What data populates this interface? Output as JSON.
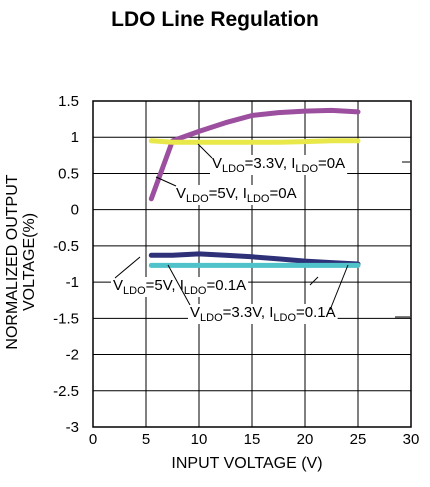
{
  "chart_data": {
    "type": "line",
    "title": "LDO Line Regulation",
    "xlabel": "INPUT VOLTAGE (V)",
    "ylabel_line1": "NORMALIZED OUTPUT",
    "ylabel_line2": "VOLTAGE(%)",
    "xlim": [
      0,
      30
    ],
    "ylim": [
      -3,
      1.5
    ],
    "xticks": [
      0,
      5,
      10,
      15,
      20,
      25,
      30
    ],
    "yticks": [
      1.5,
      1,
      0.5,
      0,
      -0.5,
      -1,
      -1.5,
      -2,
      -2.5,
      -3
    ],
    "grid": true,
    "series": [
      {
        "label_parts": [
          [
            "V",
            ""
          ],
          [
            "LDO",
            "sub"
          ],
          [
            "=5V, I",
            ""
          ],
          [
            "LDO",
            "sub"
          ],
          [
            "=0A",
            ""
          ]
        ],
        "color": "#9b4f9e",
        "x": [
          5.5,
          7.5,
          10,
          12.5,
          15,
          17.5,
          20,
          22.5,
          25
        ],
        "y": [
          0.15,
          0.95,
          1.08,
          1.2,
          1.3,
          1.34,
          1.36,
          1.37,
          1.35
        ]
      },
      {
        "label_parts": [
          [
            "V",
            ""
          ],
          [
            "LDO",
            "sub"
          ],
          [
            "=3.3V, I",
            ""
          ],
          [
            "LDO",
            "sub"
          ],
          [
            "=0A",
            ""
          ]
        ],
        "color": "#e8e84a",
        "x": [
          5.5,
          7.5,
          10,
          12.5,
          15,
          17.5,
          20,
          22.5,
          25
        ],
        "y": [
          0.95,
          0.93,
          0.93,
          0.93,
          0.93,
          0.93,
          0.94,
          0.95,
          0.95
        ]
      },
      {
        "label_parts": [
          [
            "V",
            ""
          ],
          [
            "LDO",
            "sub"
          ],
          [
            "=5V, I",
            ""
          ],
          [
            "LDO",
            "sub"
          ],
          [
            "=0.1A",
            ""
          ]
        ],
        "color": "#2e3178",
        "x": [
          5.5,
          7.5,
          10,
          12.5,
          15,
          17.5,
          20,
          22.5,
          25
        ],
        "y": [
          -0.63,
          -0.63,
          -0.61,
          -0.63,
          -0.65,
          -0.68,
          -0.71,
          -0.73,
          -0.75
        ]
      },
      {
        "label_parts": [
          [
            "V",
            ""
          ],
          [
            "LDO",
            "sub"
          ],
          [
            "=3.3V, I",
            ""
          ],
          [
            "LDO",
            "sub"
          ],
          [
            "=0.1A",
            ""
          ]
        ],
        "color": "#4fc3c9",
        "x": [
          5.5,
          7.5,
          10,
          12.5,
          15,
          17.5,
          20,
          22.5,
          25
        ],
        "y": [
          -0.77,
          -0.77,
          -0.77,
          -0.77,
          -0.77,
          -0.77,
          -0.77,
          -0.77,
          -0.77
        ]
      }
    ]
  }
}
